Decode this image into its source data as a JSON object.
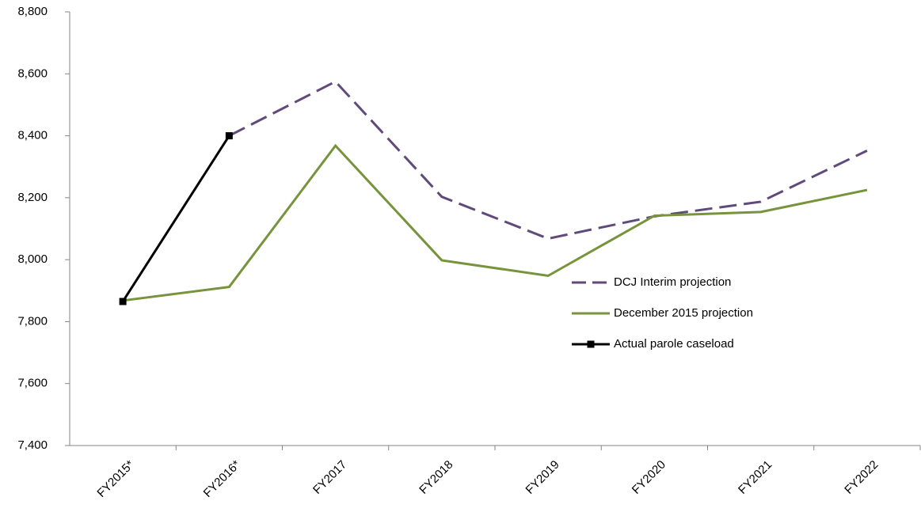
{
  "chart_data": {
    "type": "line",
    "categories": [
      "FY2015*",
      "FY2016*",
      "FY2017",
      "FY2018",
      "FY2019",
      "FY2020",
      "FY2021",
      "FY2022"
    ],
    "series": [
      {
        "name": "DCJ Interim projection",
        "color": "#604a7b",
        "dash": true,
        "marker": null,
        "values": [
          null,
          8400,
          8575,
          8203,
          8068,
          8140,
          8187,
          8352
        ]
      },
      {
        "name": "December 2015 projection",
        "color": "#77933c",
        "dash": false,
        "marker": null,
        "values": [
          7868,
          7912,
          8368,
          7998,
          7948,
          8142,
          8154,
          8225
        ]
      },
      {
        "name": "Actual parole caseload",
        "color": "#000000",
        "dash": false,
        "marker": "square",
        "values": [
          7865,
          8400,
          null,
          null,
          null,
          null,
          null,
          null
        ]
      }
    ],
    "ylim": [
      7400,
      8800
    ],
    "yticks": [
      {
        "value": 7400,
        "label": "7,400"
      },
      {
        "value": 7600,
        "label": "7,600"
      },
      {
        "value": 7800,
        "label": "7,800"
      },
      {
        "value": 8000,
        "label": "8,000"
      },
      {
        "value": 8200,
        "label": "8,200"
      },
      {
        "value": 8400,
        "label": "8,400"
      },
      {
        "value": 8600,
        "label": "8,600"
      },
      {
        "value": 8800,
        "label": "8,800"
      }
    ],
    "grid": false,
    "legend": "center-right"
  }
}
